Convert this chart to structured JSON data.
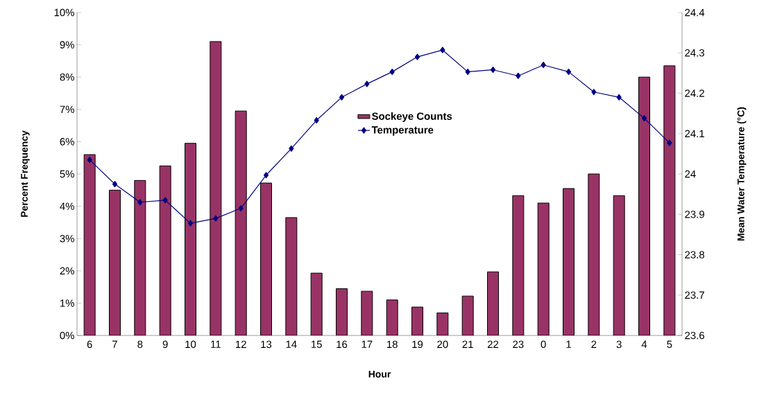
{
  "chart_data": {
    "type": "bar",
    "xlabel": "Hour",
    "ylabel": "Percent Frequency",
    "y2label": "Mean Water Temperature (°C)",
    "categories": [
      "6",
      "7",
      "8",
      "9",
      "10",
      "11",
      "12",
      "13",
      "14",
      "15",
      "16",
      "17",
      "18",
      "19",
      "20",
      "21",
      "22",
      "23",
      "0",
      "1",
      "2",
      "3",
      "4",
      "5"
    ],
    "series": [
      {
        "name": "Sockeye Counts",
        "color": "#993366",
        "values": [
          5.6,
          4.5,
          4.8,
          5.25,
          5.95,
          9.1,
          6.95,
          4.72,
          3.65,
          1.93,
          1.45,
          1.37,
          1.1,
          0.88,
          0.7,
          1.22,
          1.97,
          4.33,
          4.1,
          4.55,
          5.0,
          4.33,
          8.0,
          8.35
        ]
      },
      {
        "name": "Temperature",
        "type": "line",
        "axis": "y2",
        "color": "#000080",
        "marker": "diamond",
        "values": [
          24.035,
          23.975,
          23.93,
          23.935,
          23.878,
          23.89,
          23.915,
          23.997,
          24.063,
          24.133,
          24.19,
          24.223,
          24.253,
          24.29,
          24.307,
          24.253,
          24.258,
          24.243,
          24.27,
          24.253,
          24.203,
          24.19,
          24.138,
          24.077
        ]
      }
    ],
    "ylim": [
      0,
      10
    ],
    "yticks": [
      {
        "value": 0,
        "label": "0%"
      },
      {
        "value": 1,
        "label": "1%"
      },
      {
        "value": 2,
        "label": "2%"
      },
      {
        "value": 3,
        "label": "3%"
      },
      {
        "value": 4,
        "label": "4%"
      },
      {
        "value": 5,
        "label": "5%"
      },
      {
        "value": 6,
        "label": "6%"
      },
      {
        "value": 7,
        "label": "7%"
      },
      {
        "value": 8,
        "label": "8%"
      },
      {
        "value": 9,
        "label": "9%"
      },
      {
        "value": 10,
        "label": "10%"
      }
    ],
    "y2lim": [
      23.6,
      24.4
    ],
    "y2ticks": [
      23.6,
      23.7,
      23.8,
      23.9,
      24,
      24.1,
      24.2,
      24.3,
      24.4
    ],
    "legend": "top",
    "grid": false
  }
}
